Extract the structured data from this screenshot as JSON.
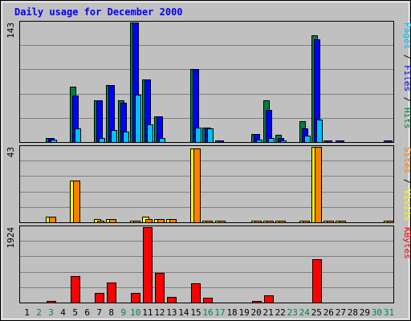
{
  "chart_data": {
    "type": "bar",
    "title": "Daily usage for December 2000",
    "colors": {
      "background": "#c0c0c0",
      "plot_background": "#c0c0c0",
      "title": "#0000ff",
      "hits": "#008040",
      "files": "#0000ff",
      "pages": "#00c0ff",
      "visits": "#ffff00",
      "sites": "#ff8000",
      "kbytes": "#ff0000",
      "weekend_label": "#00805c",
      "weekday_label": "#000000",
      "gridline": "#808080",
      "border": "#000000"
    },
    "days": [
      "1",
      "2",
      "3",
      "4",
      "5",
      "6",
      "7",
      "8",
      "9",
      "10",
      "11",
      "12",
      "13",
      "14",
      "15",
      "16",
      "17",
      "18",
      "19",
      "20",
      "21",
      "22",
      "23",
      "24",
      "25",
      "26",
      "27",
      "28",
      "29",
      "30",
      "31"
    ],
    "weekend_days": [
      "2",
      "3",
      "9",
      "10",
      "16",
      "17",
      "23",
      "24",
      "30",
      "31"
    ],
    "panels": [
      {
        "id": "hits-panel",
        "ymax": 143,
        "ymax_label": "143",
        "axis_label_parts": [
          {
            "text": "Pages",
            "color": "#00c0ff"
          },
          {
            "text": " / ",
            "color": "#000000"
          },
          {
            "text": "Files",
            "color": "#0000ff"
          },
          {
            "text": " / ",
            "color": "#000000"
          },
          {
            "text": "Hits",
            "color": "#008040"
          }
        ],
        "series": [
          {
            "key": "hits",
            "values": [
              0,
              0,
              5,
              0,
              66,
              0,
              50,
              68,
              50,
              143,
              75,
              31,
              0,
              0,
              87,
              17,
              2,
              0,
              0,
              10,
              50,
              9,
              0,
              25,
              128,
              2,
              2,
              0,
              0,
              0,
              2
            ]
          },
          {
            "key": "files",
            "values": [
              0,
              0,
              5,
              0,
              56,
              0,
              50,
              68,
              47,
              143,
              75,
              31,
              0,
              0,
              87,
              17,
              2,
              0,
              0,
              10,
              38,
              5,
              0,
              16,
              123,
              2,
              2,
              0,
              0,
              0,
              2
            ]
          },
          {
            "key": "pages",
            "values": [
              0,
              0,
              3,
              0,
              16,
              0,
              5,
              14,
              12,
              57,
              21,
              5,
              0,
              0,
              17,
              16,
              0,
              0,
              0,
              3,
              5,
              2,
              0,
              8,
              27,
              0,
              0,
              0,
              0,
              0,
              0
            ]
          }
        ]
      },
      {
        "id": "visits-panel",
        "ymax": 43,
        "ymax_label": "43",
        "axis_label_parts": [
          {
            "text": "Sites",
            "color": "#ff8000"
          },
          {
            "text": " / ",
            "color": "#000000"
          },
          {
            "text": "Visits",
            "color": "#ffff00"
          }
        ],
        "series": [
          {
            "key": "visits",
            "values": [
              0,
              0,
              3,
              0,
              24,
              0,
              2,
              2,
              0,
              1,
              3,
              2,
              2,
              0,
              42,
              1,
              1,
              0,
              0,
              1,
              1,
              1,
              0,
              1,
              43,
              1,
              1,
              0,
              0,
              0,
              1
            ]
          },
          {
            "key": "sites",
            "values": [
              0,
              0,
              3,
              0,
              24,
              0,
              1,
              2,
              0,
              1,
              2,
              2,
              2,
              0,
              42,
              1,
              1,
              0,
              0,
              1,
              1,
              1,
              0,
              1,
              43,
              1,
              1,
              0,
              0,
              0,
              1
            ]
          }
        ]
      },
      {
        "id": "kbytes-panel",
        "ymax": 1924,
        "ymax_label": "1924",
        "axis_label_parts": [
          {
            "text": "KBytes",
            "color": "#ff0000"
          }
        ],
        "series": [
          {
            "key": "kbytes",
            "values": [
              0,
              0,
              20,
              0,
              670,
              0,
              245,
              510,
              0,
              245,
              1924,
              750,
              150,
              0,
              485,
              120,
              0,
              0,
              0,
              20,
              175,
              0,
              0,
              0,
              1115,
              0,
              0,
              0,
              0,
              0,
              0
            ]
          }
        ]
      }
    ]
  }
}
